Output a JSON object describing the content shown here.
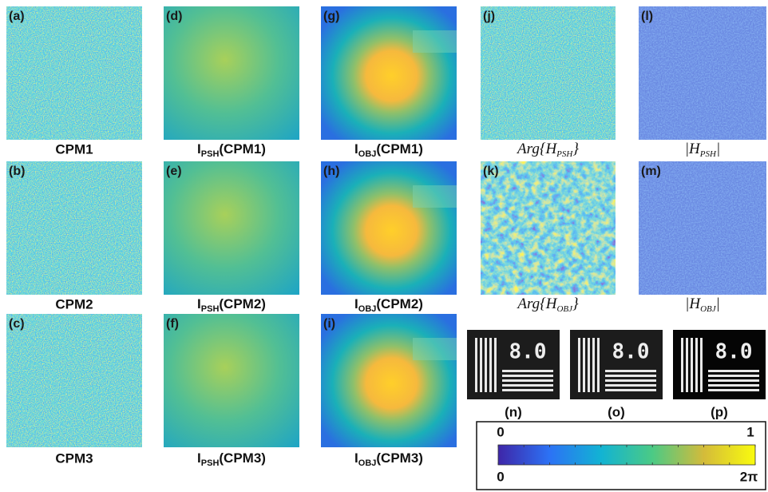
{
  "panel_labels": [
    "(a)",
    "(d)",
    "(g)",
    "(j)",
    "(l)",
    "(b)",
    "(e)",
    "(h)",
    "(k)",
    "(m)",
    "(c)",
    "(f)",
    "(i)"
  ],
  "captions": [
    {
      "text": "CPM1"
    },
    {
      "base": "I",
      "sub": "PSH",
      "arg": "(CPM1)"
    },
    {
      "base": "I",
      "sub": "OBJ",
      "arg": "(CPM1)"
    },
    {
      "base": "Arg{H",
      "sub": "PSH",
      "arg": "}"
    },
    {
      "base": "|H",
      "sub": "PSH",
      "arg": "|"
    },
    {
      "text": "CPM2"
    },
    {
      "base": "I",
      "sub": "PSH",
      "arg": "(CPM2)"
    },
    {
      "base": "I",
      "sub": "OBJ",
      "arg": "(CPM2)"
    },
    {
      "base": "Arg{H",
      "sub": "OBJ",
      "arg": "}"
    },
    {
      "base": "|H",
      "sub": "OBJ",
      "arg": "|"
    },
    {
      "text": "CPM3"
    },
    {
      "base": "I",
      "sub": "PSH",
      "arg": "(CPM3)"
    },
    {
      "base": "I",
      "sub": "OBJ",
      "arg": "(CPM3)"
    }
  ],
  "small_panels": [
    {
      "label": "(n)",
      "target_text": "8.0"
    },
    {
      "label": "(o)",
      "target_text": "8.0"
    },
    {
      "label": "(p)",
      "target_text": "8.0"
    }
  ],
  "colorbar": {
    "top_min": "0",
    "top_max": "1",
    "bottom_min": "0",
    "bottom_max": "2π"
  }
}
